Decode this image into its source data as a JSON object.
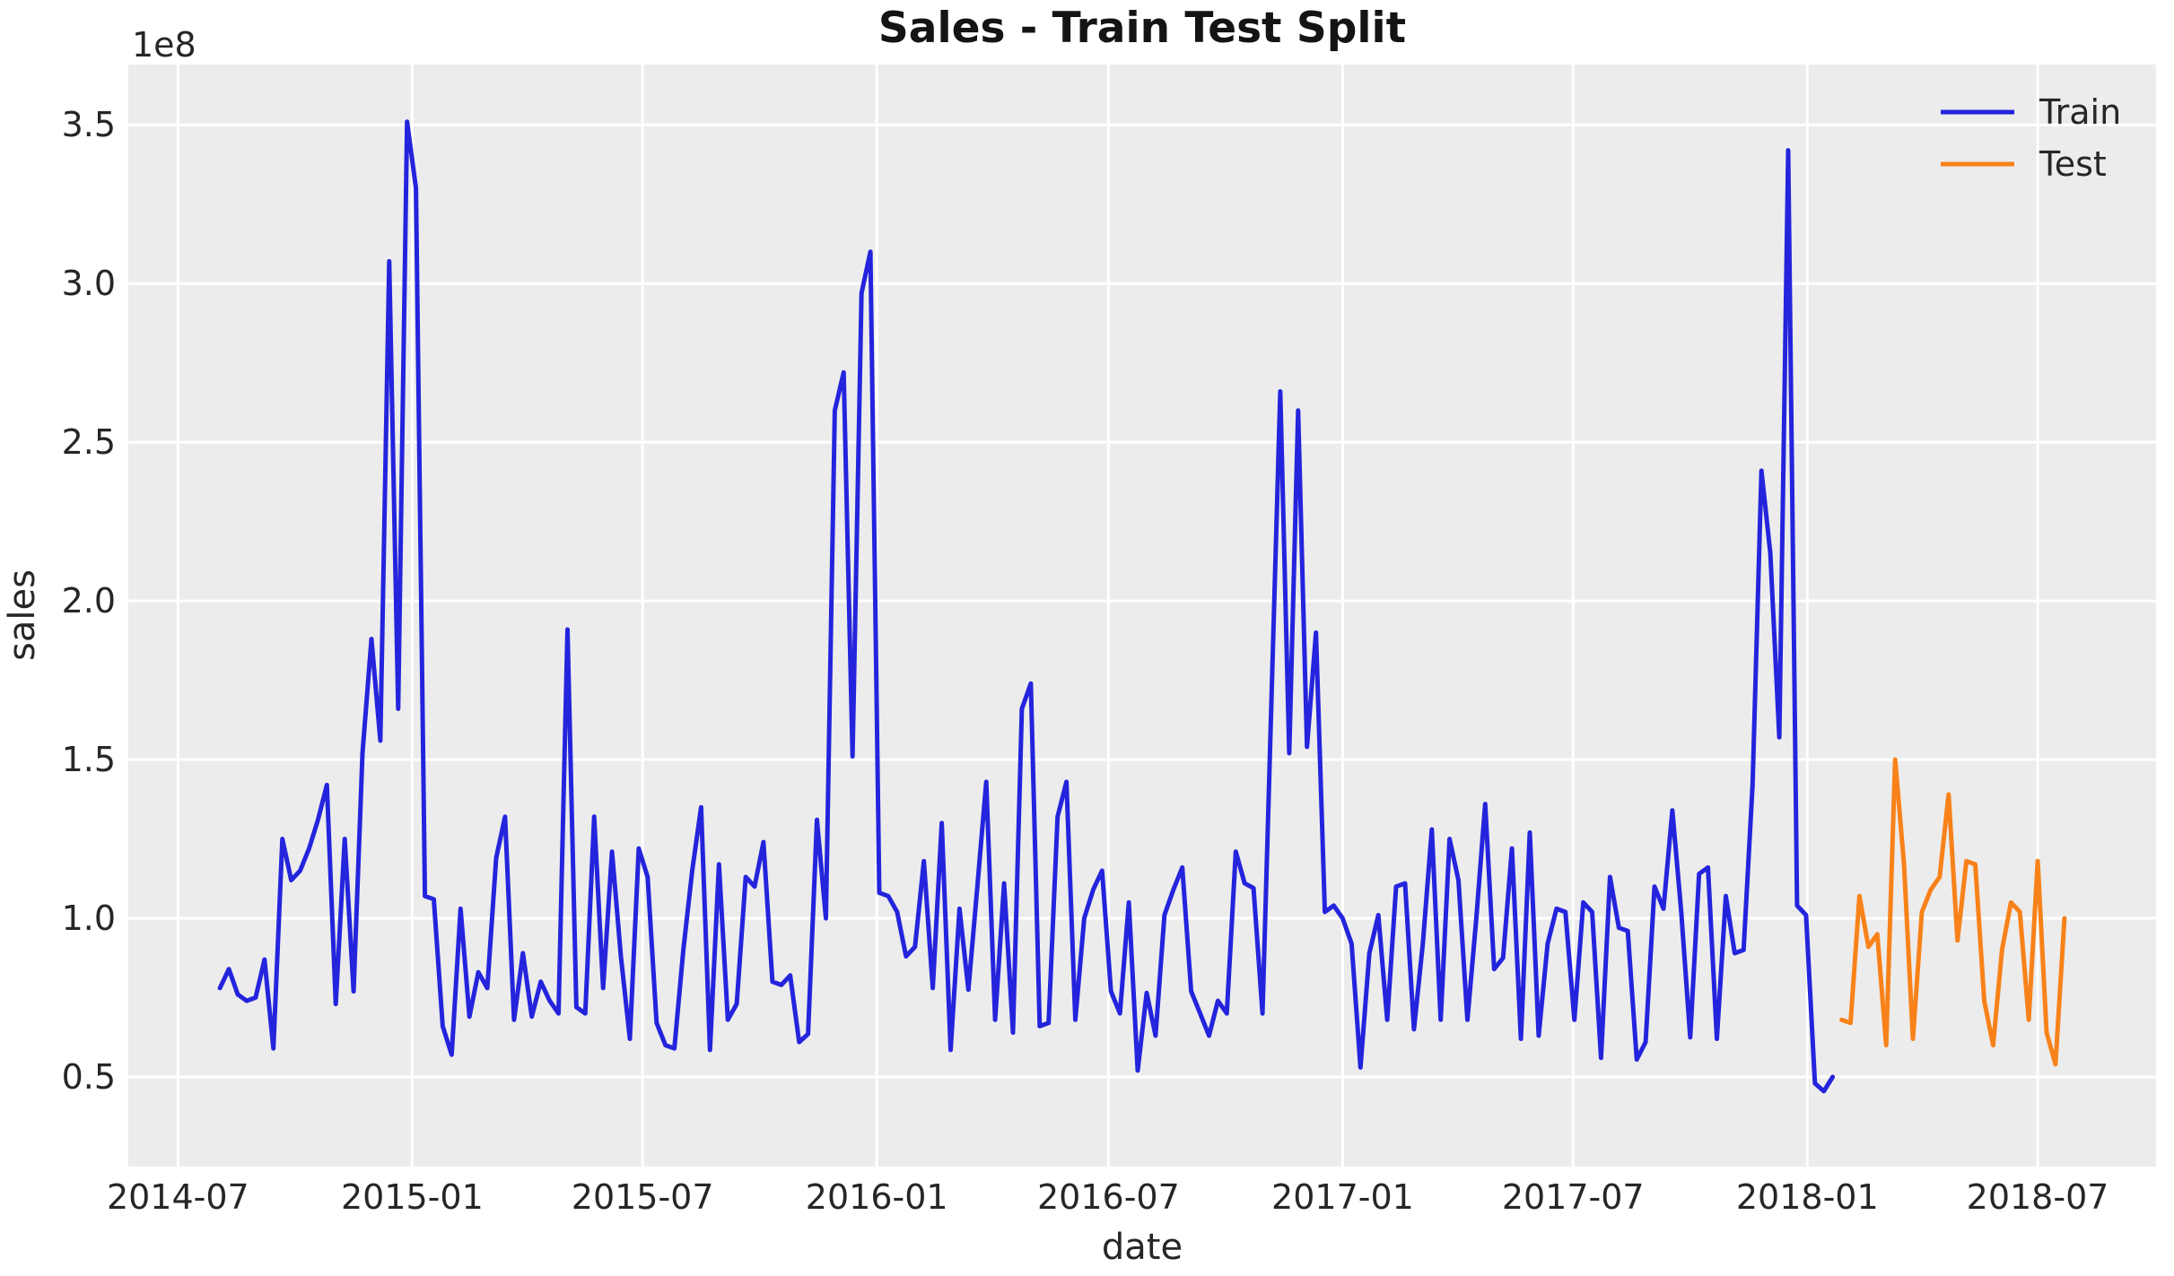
{
  "figure": {
    "title": "Sales - Train Test Split",
    "xlabel": "date",
    "ylabel": "sales",
    "offset_label": "1e8",
    "legend": [
      {
        "label": "Train",
        "color": "#2424dd"
      },
      {
        "label": "Test",
        "color": "#f8821a"
      }
    ],
    "colors": {
      "plot_background": "#ececec",
      "figure_background": "#ffffff",
      "gridline": "#ffffff",
      "text": "#262626",
      "train_line": "#2424dd",
      "test_line": "#f8821a"
    }
  },
  "chart_data": {
    "type": "line",
    "title": "Sales - Train Test Split",
    "xlabel": "date",
    "ylabel": "sales",
    "y_unit_multiplier": 100000000,
    "y_offset_text": "1e8",
    "grid": true,
    "legend_position": "upper right",
    "ylim": [
      0.2175,
      3.69
    ],
    "xlim": [
      "2014-05-23",
      "2018-10-02"
    ],
    "y_ticks": [
      0.5,
      1.0,
      1.5,
      2.0,
      2.5,
      3.0,
      3.5
    ],
    "x_ticks": [
      {
        "date": "2014-07-01",
        "label": "2014-07"
      },
      {
        "date": "2015-01-01",
        "label": "2015-01"
      },
      {
        "date": "2015-07-01",
        "label": "2015-07"
      },
      {
        "date": "2016-01-01",
        "label": "2016-01"
      },
      {
        "date": "2016-07-01",
        "label": "2016-07"
      },
      {
        "date": "2017-01-01",
        "label": "2017-01"
      },
      {
        "date": "2017-07-01",
        "label": "2017-07"
      },
      {
        "date": "2018-01-01",
        "label": "2018-01"
      },
      {
        "date": "2018-07-01",
        "label": "2018-07"
      }
    ],
    "series": [
      {
        "name": "Train",
        "color": "#2424dd",
        "start_date": "2014-08-03",
        "interval_days": 7,
        "values": [
          0.78,
          0.84,
          0.76,
          0.74,
          0.75,
          0.87,
          0.59,
          1.25,
          1.12,
          1.15,
          1.22,
          1.31,
          1.42,
          0.73,
          1.25,
          0.77,
          1.52,
          1.88,
          1.56,
          3.07,
          1.66,
          3.51,
          3.3,
          1.07,
          1.06,
          0.66,
          0.57,
          1.03,
          0.69,
          0.83,
          0.78,
          1.19,
          1.32,
          0.68,
          0.89,
          0.69,
          0.8,
          0.74,
          0.7,
          1.91,
          0.72,
          0.7,
          1.32,
          0.78,
          1.21,
          0.88,
          0.62,
          1.22,
          1.13,
          0.67,
          0.6,
          0.59,
          0.9,
          1.15,
          1.35,
          0.585,
          1.17,
          0.68,
          0.73,
          1.13,
          1.1,
          1.24,
          0.8,
          0.79,
          0.82,
          0.61,
          0.635,
          1.31,
          1.0,
          2.6,
          2.72,
          1.51,
          2.97,
          3.1,
          1.08,
          1.07,
          1.02,
          0.88,
          0.91,
          1.18,
          0.78,
          1.3,
          0.585,
          1.03,
          0.775,
          1.1,
          1.43,
          0.68,
          1.11,
          0.64,
          1.66,
          1.74,
          0.66,
          0.67,
          1.32,
          1.43,
          0.68,
          1.0,
          1.09,
          1.15,
          0.77,
          0.7,
          1.05,
          0.52,
          0.765,
          0.63,
          1.01,
          1.09,
          1.16,
          0.77,
          0.7,
          0.63,
          0.74,
          0.7,
          1.21,
          1.11,
          1.095,
          0.7,
          1.68,
          2.66,
          1.52,
          2.6,
          1.54,
          1.9,
          1.02,
          1.04,
          1.0,
          0.92,
          0.53,
          0.89,
          1.01,
          0.68,
          1.1,
          1.11,
          0.65,
          0.92,
          1.28,
          0.68,
          1.25,
          1.12,
          0.68,
          1.0,
          1.36,
          0.84,
          0.875,
          1.22,
          0.62,
          1.27,
          0.63,
          0.92,
          1.03,
          1.02,
          0.68,
          1.05,
          1.02,
          0.56,
          1.13,
          0.97,
          0.96,
          0.555,
          0.61,
          1.1,
          1.03,
          1.34,
          1.02,
          0.625,
          1.14,
          1.16,
          0.62,
          1.07,
          0.89,
          0.9,
          1.42,
          2.41,
          2.15,
          1.57,
          3.42,
          1.04,
          1.01,
          0.48,
          0.455,
          0.5
        ]
      },
      {
        "name": "Test",
        "color": "#f8821a",
        "start_date": "2018-01-28",
        "interval_days": 7,
        "values": [
          0.68,
          0.67,
          1.07,
          0.91,
          0.95,
          0.6,
          1.5,
          1.17,
          0.62,
          1.02,
          1.09,
          1.13,
          1.39,
          0.93,
          1.18,
          1.17,
          0.74,
          0.6,
          0.9,
          1.05,
          1.02,
          0.68,
          1.18,
          0.64,
          0.54,
          1.0
        ]
      }
    ]
  }
}
